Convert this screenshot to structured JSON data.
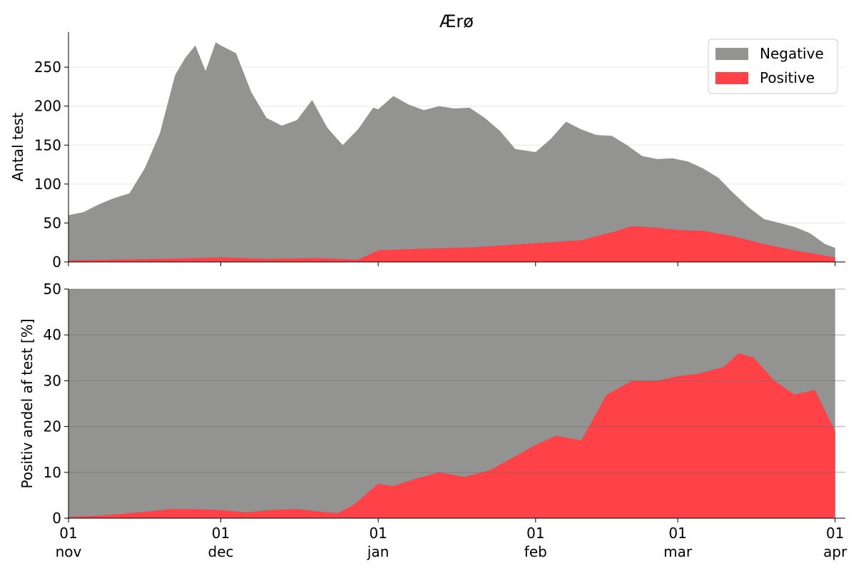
{
  "chart_data": {
    "type": "area",
    "title": "Ærø",
    "colors": {
      "negative": "#939492",
      "positive": "#ff4248",
      "grid": "#b0b0b0"
    },
    "legend": {
      "placement": "top-right",
      "entries": [
        "Negative",
        "Positive"
      ]
    },
    "x_ticks": [
      {
        "date": "2020-11-01",
        "day": "01",
        "month": "nov"
      },
      {
        "date": "2020-12-01",
        "day": "01",
        "month": "dec"
      },
      {
        "date": "2021-01-01",
        "day": "01",
        "month": "jan"
      },
      {
        "date": "2021-02-01",
        "day": "01",
        "month": "feb"
      },
      {
        "date": "2021-03-01",
        "day": "01",
        "month": "mar"
      },
      {
        "date": "2021-04-01",
        "day": "01",
        "month": "apr"
      }
    ],
    "xlim": [
      "2020-11-01",
      "2021-04-03"
    ],
    "panels": [
      {
        "ylabel": "Antal test",
        "ylim": [
          0,
          295
        ],
        "yticks": [
          "0",
          "50",
          "100",
          "150",
          "200",
          "250"
        ],
        "grid": true,
        "series": [
          {
            "name": "Negative",
            "stack": "top",
            "x": [
              "2020-11-01",
              "2020-11-04",
              "2020-11-07",
              "2020-11-10",
              "2020-11-13",
              "2020-11-16",
              "2020-11-19",
              "2020-11-22",
              "2020-11-24",
              "2020-11-26",
              "2020-11-28",
              "2020-11-30",
              "2020-12-01",
              "2020-12-04",
              "2020-12-07",
              "2020-12-10",
              "2020-12-13",
              "2020-12-16",
              "2020-12-19",
              "2020-12-22",
              "2020-12-25",
              "2020-12-28",
              "2020-12-31",
              "2021-01-01",
              "2021-01-04",
              "2021-01-07",
              "2021-01-10",
              "2021-01-13",
              "2021-01-16",
              "2021-01-19",
              "2021-01-22",
              "2021-01-25",
              "2021-01-28",
              "2021-02-01",
              "2021-02-04",
              "2021-02-07",
              "2021-02-10",
              "2021-02-13",
              "2021-02-16",
              "2021-02-19",
              "2021-02-22",
              "2021-02-25",
              "2021-02-28",
              "2021-03-03",
              "2021-03-06",
              "2021-03-09",
              "2021-03-12",
              "2021-03-15",
              "2021-03-18",
              "2021-03-21",
              "2021-03-24",
              "2021-03-27",
              "2021-03-30",
              "2021-04-01"
            ],
            "y": [
              60,
              64,
              74,
              82,
              88,
              120,
              165,
              240,
              262,
              278,
              245,
              282,
              278,
              268,
              218,
              185,
              175,
              182,
              208,
              172,
              150,
              170,
              198,
              196,
              213,
              202,
              195,
              200,
              197,
              198,
              185,
              168,
              145,
              141,
              158,
              180,
              170,
              163,
              162,
              150,
              136,
              132,
              133,
              129,
              120,
              108,
              88,
              70,
              55,
              50,
              45,
              37,
              23,
              18
            ]
          },
          {
            "name": "Positive",
            "x": [
              "2020-11-01",
              "2020-11-10",
              "2020-11-20",
              "2020-12-01",
              "2020-12-10",
              "2020-12-20",
              "2020-12-28",
              "2021-01-01",
              "2021-01-10",
              "2021-01-20",
              "2021-02-01",
              "2021-02-10",
              "2021-02-16",
              "2021-02-20",
              "2021-02-25",
              "2021-03-01",
              "2021-03-06",
              "2021-03-12",
              "2021-03-18",
              "2021-03-24",
              "2021-04-01"
            ],
            "y": [
              2,
              3,
              4,
              6,
              4,
              5,
              3,
              15,
              17,
              19,
              24,
              28,
              38,
              46,
              44,
              41,
              40,
              33,
              23,
              15,
              6
            ]
          }
        ]
      },
      {
        "ylabel": "Positiv andel af test [%]",
        "ylim": [
          0,
          50
        ],
        "yticks": [
          "0",
          "10",
          "20",
          "30",
          "40",
          "50"
        ],
        "grid": true,
        "background_series": "Negative",
        "series": [
          {
            "name": "Positive",
            "x": [
              "2020-11-01",
              "2020-11-06",
              "2020-11-11",
              "2020-11-16",
              "2020-11-21",
              "2020-11-26",
              "2020-12-01",
              "2020-12-06",
              "2020-12-11",
              "2020-12-16",
              "2020-12-21",
              "2020-12-24",
              "2020-12-27",
              "2021-01-01",
              "2021-01-04",
              "2021-01-08",
              "2021-01-13",
              "2021-01-18",
              "2021-01-23",
              "2021-01-28",
              "2021-02-01",
              "2021-02-05",
              "2021-02-10",
              "2021-02-15",
              "2021-02-20",
              "2021-02-25",
              "2021-03-01",
              "2021-03-05",
              "2021-03-10",
              "2021-03-13",
              "2021-03-16",
              "2021-03-20",
              "2021-03-24",
              "2021-03-28",
              "2021-04-01"
            ],
            "y": [
              0.3,
              0.5,
              0.9,
              1.4,
              2.0,
              2.0,
              1.8,
              1.3,
              1.8,
              2.0,
              1.4,
              1.1,
              2.8,
              7.5,
              7.0,
              8.5,
              10.0,
              9.0,
              10.5,
              13.5,
              16,
              18,
              17,
              27,
              30,
              30,
              31,
              31.5,
              33,
              36,
              35,
              30,
              27,
              28,
              19
            ]
          }
        ]
      }
    ]
  }
}
